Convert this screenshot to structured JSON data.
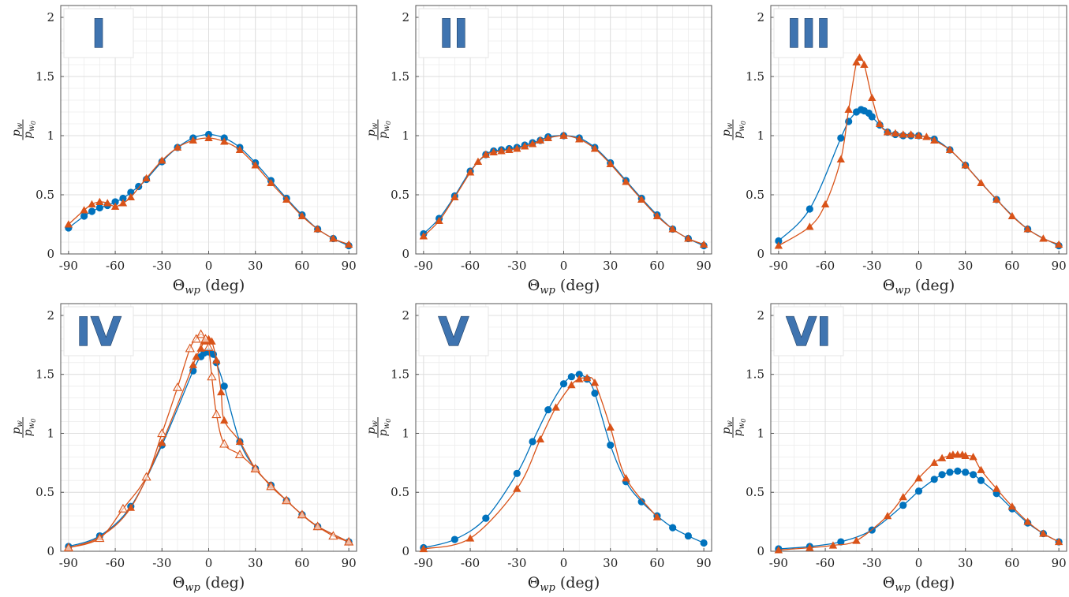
{
  "colors": {
    "blue": "#0072BD",
    "orange": "#D95319",
    "grid_minor": "#ececec",
    "grid_major": "#dcdcdc",
    "axis": "#555555"
  },
  "chart_data": [
    {
      "type": "line",
      "label": "I",
      "xlabel": "Θ_wp (deg)",
      "ylabel": "p_w / p_w0",
      "xlim": [
        -95,
        95
      ],
      "ylim": [
        0,
        2.1
      ],
      "xticks": [
        -90,
        -60,
        -30,
        0,
        30,
        60,
        90
      ],
      "yticks": [
        0,
        0.5,
        1,
        1.5,
        2
      ],
      "series": [
        {
          "color": "blue",
          "marker": "circle",
          "x": [
            -90,
            -80,
            -75,
            -70,
            -65,
            -60,
            -55,
            -50,
            -45,
            -40,
            -30,
            -20,
            -10,
            0,
            10,
            20,
            30,
            40,
            50,
            60,
            70,
            80,
            90
          ],
          "y": [
            0.22,
            0.32,
            0.36,
            0.39,
            0.41,
            0.44,
            0.47,
            0.52,
            0.57,
            0.63,
            0.78,
            0.9,
            0.98,
            1.01,
            0.98,
            0.9,
            0.77,
            0.62,
            0.47,
            0.33,
            0.21,
            0.13,
            0.07
          ]
        },
        {
          "color": "orange",
          "marker": "triangle",
          "x": [
            -90,
            -80,
            -75,
            -70,
            -65,
            -60,
            -55,
            -50,
            -40,
            -30,
            -20,
            -10,
            0,
            10,
            20,
            30,
            40,
            50,
            60,
            70,
            80,
            90
          ],
          "y": [
            0.25,
            0.37,
            0.42,
            0.44,
            0.43,
            0.4,
            0.43,
            0.48,
            0.64,
            0.79,
            0.9,
            0.96,
            0.98,
            0.95,
            0.88,
            0.75,
            0.6,
            0.46,
            0.32,
            0.21,
            0.13,
            0.08
          ]
        }
      ]
    },
    {
      "type": "line",
      "label": "II",
      "xlabel": "Θ_wp (deg)",
      "ylabel": "p_w / p_w0",
      "xlim": [
        -95,
        95
      ],
      "ylim": [
        0,
        2.1
      ],
      "xticks": [
        -90,
        -60,
        -30,
        0,
        30,
        60,
        90
      ],
      "yticks": [
        0,
        0.5,
        1,
        1.5,
        2
      ],
      "series": [
        {
          "color": "blue",
          "marker": "circle",
          "x": [
            -90,
            -80,
            -70,
            -60,
            -50,
            -45,
            -40,
            -35,
            -30,
            -25,
            -20,
            -15,
            -10,
            0,
            10,
            20,
            30,
            40,
            50,
            60,
            70,
            80,
            90
          ],
          "y": [
            0.17,
            0.3,
            0.49,
            0.7,
            0.84,
            0.87,
            0.88,
            0.89,
            0.9,
            0.92,
            0.94,
            0.96,
            0.99,
            1.0,
            0.98,
            0.9,
            0.77,
            0.62,
            0.47,
            0.33,
            0.21,
            0.13,
            0.07
          ]
        },
        {
          "color": "orange",
          "marker": "triangle",
          "x": [
            -90,
            -80,
            -70,
            -60,
            -55,
            -50,
            -45,
            -40,
            -35,
            -30,
            -25,
            -20,
            -15,
            -10,
            0,
            10,
            20,
            30,
            40,
            50,
            60,
            70,
            80,
            90
          ],
          "y": [
            0.15,
            0.28,
            0.48,
            0.69,
            0.78,
            0.84,
            0.86,
            0.87,
            0.88,
            0.89,
            0.91,
            0.93,
            0.96,
            0.98,
            1.0,
            0.97,
            0.89,
            0.76,
            0.61,
            0.46,
            0.32,
            0.21,
            0.13,
            0.08
          ]
        }
      ]
    },
    {
      "type": "line",
      "label": "III",
      "xlabel": "Θ_wp (deg)",
      "ylabel": "p_w / p_w0",
      "xlim": [
        -95,
        95
      ],
      "ylim": [
        0,
        2.1
      ],
      "xticks": [
        -90,
        -60,
        -30,
        0,
        30,
        60,
        90
      ],
      "yticks": [
        0,
        0.5,
        1,
        1.5,
        2
      ],
      "series": [
        {
          "color": "blue",
          "marker": "circle",
          "x": [
            -90,
            -70,
            -50,
            -45,
            -40,
            -37,
            -35,
            -32,
            -30,
            -25,
            -20,
            -15,
            -10,
            -5,
            0,
            10,
            20,
            30,
            50,
            70,
            90
          ],
          "y": [
            0.11,
            0.38,
            0.98,
            1.12,
            1.2,
            1.22,
            1.21,
            1.19,
            1.16,
            1.09,
            1.03,
            1.01,
            1.0,
            1.0,
            1.0,
            0.97,
            0.88,
            0.75,
            0.46,
            0.21,
            0.07
          ]
        },
        {
          "color": "orange",
          "marker": "triangle",
          "x": [
            -90,
            -70,
            -60,
            -50,
            -45,
            -40,
            -38,
            -35,
            -30,
            -25,
            -20,
            -15,
            -10,
            -5,
            0,
            5,
            10,
            20,
            30,
            40,
            50,
            60,
            70,
            80,
            90
          ],
          "y": [
            0.07,
            0.23,
            0.42,
            0.8,
            1.22,
            1.62,
            1.66,
            1.6,
            1.32,
            1.1,
            1.03,
            1.02,
            1.01,
            1.01,
            1.0,
            0.99,
            0.96,
            0.88,
            0.75,
            0.6,
            0.46,
            0.32,
            0.21,
            0.13,
            0.08
          ]
        }
      ]
    },
    {
      "type": "line",
      "label": "IV",
      "xlabel": "Θ_wp (deg)",
      "ylabel": "p_w / p_w0",
      "xlim": [
        -95,
        95
      ],
      "ylim": [
        0,
        2.1
      ],
      "xticks": [
        -90,
        -60,
        -30,
        0,
        30,
        60,
        90
      ],
      "yticks": [
        0,
        0.5,
        1,
        1.5,
        2
      ],
      "series": [
        {
          "color": "blue",
          "marker": "circle",
          "x": [
            -90,
            -70,
            -50,
            -30,
            -10,
            -5,
            -3,
            0,
            3,
            5,
            10,
            20,
            30,
            40,
            50,
            60,
            70,
            90
          ],
          "y": [
            0.04,
            0.13,
            0.38,
            0.9,
            1.53,
            1.65,
            1.68,
            1.69,
            1.67,
            1.6,
            1.4,
            0.93,
            0.7,
            0.56,
            0.43,
            0.31,
            0.21,
            0.08
          ]
        },
        {
          "color": "orange",
          "marker": "triangle",
          "x": [
            -90,
            -70,
            -50,
            -30,
            -10,
            -8,
            -5,
            -3,
            0,
            2,
            5,
            8,
            10,
            20,
            30,
            40,
            50,
            60,
            70,
            90
          ],
          "y": [
            0.03,
            0.12,
            0.37,
            0.92,
            1.58,
            1.65,
            1.72,
            1.78,
            1.8,
            1.78,
            1.62,
            1.35,
            1.11,
            0.93,
            0.7,
            0.56,
            0.43,
            0.31,
            0.21,
            0.08
          ]
        },
        {
          "color": "orange",
          "marker": "triangle-open",
          "x": [
            -90,
            -70,
            -55,
            -40,
            -30,
            -20,
            -12,
            -8,
            -5,
            -2,
            0,
            2,
            5,
            10,
            20,
            30,
            40,
            50,
            60,
            70,
            80,
            90
          ],
          "y": [
            0.03,
            0.11,
            0.36,
            0.63,
            1.0,
            1.39,
            1.72,
            1.8,
            1.84,
            1.8,
            1.73,
            1.48,
            1.16,
            0.91,
            0.82,
            0.7,
            0.55,
            0.43,
            0.31,
            0.21,
            0.13,
            0.08
          ]
        }
      ]
    },
    {
      "type": "line",
      "label": "V",
      "xlabel": "Θ_wp (deg)",
      "ylabel": "p_w / p_w0",
      "xlim": [
        -95,
        95
      ],
      "ylim": [
        0,
        2.1
      ],
      "xticks": [
        -90,
        -60,
        -30,
        0,
        30,
        60,
        90
      ],
      "yticks": [
        0,
        0.5,
        1,
        1.5,
        2
      ],
      "series": [
        {
          "color": "blue",
          "marker": "circle",
          "x": [
            -90,
            -70,
            -50,
            -30,
            -20,
            -10,
            0,
            5,
            10,
            15,
            20,
            30,
            40,
            50,
            60,
            70,
            80,
            90
          ],
          "y": [
            0.03,
            0.1,
            0.28,
            0.66,
            0.93,
            1.2,
            1.42,
            1.48,
            1.5,
            1.46,
            1.34,
            0.9,
            0.59,
            0.42,
            0.3,
            0.2,
            0.13,
            0.07
          ]
        },
        {
          "color": "orange",
          "marker": "triangle",
          "x": [
            -90,
            -60,
            -30,
            -15,
            -5,
            5,
            10,
            15,
            20,
            30,
            40,
            60
          ],
          "y": [
            0.02,
            0.11,
            0.53,
            0.95,
            1.22,
            1.41,
            1.46,
            1.47,
            1.43,
            1.05,
            0.62,
            0.29
          ]
        }
      ]
    },
    {
      "type": "line",
      "label": "VI",
      "xlabel": "Θ_wp (deg)",
      "ylabel": "p_w / p_w0",
      "xlim": [
        -95,
        95
      ],
      "ylim": [
        0,
        2.1
      ],
      "xticks": [
        -90,
        -60,
        -30,
        0,
        30,
        60,
        90
      ],
      "yticks": [
        0,
        0.5,
        1,
        1.5,
        2
      ],
      "series": [
        {
          "color": "blue",
          "marker": "circle",
          "x": [
            -90,
            -70,
            -50,
            -30,
            -10,
            0,
            10,
            15,
            20,
            25,
            30,
            35,
            40,
            50,
            60,
            70,
            80,
            90
          ],
          "y": [
            0.02,
            0.04,
            0.08,
            0.18,
            0.39,
            0.51,
            0.61,
            0.65,
            0.67,
            0.68,
            0.67,
            0.65,
            0.6,
            0.49,
            0.36,
            0.24,
            0.15,
            0.08
          ]
        },
        {
          "color": "orange",
          "marker": "triangle",
          "x": [
            -90,
            -70,
            -55,
            -40,
            -20,
            -10,
            0,
            10,
            15,
            20,
            22,
            25,
            28,
            30,
            35,
            40,
            50,
            60,
            70,
            80,
            90
          ],
          "y": [
            0.01,
            0.03,
            0.05,
            0.09,
            0.3,
            0.46,
            0.62,
            0.75,
            0.79,
            0.81,
            0.82,
            0.82,
            0.82,
            0.81,
            0.8,
            0.69,
            0.53,
            0.38,
            0.25,
            0.15,
            0.08
          ]
        }
      ]
    }
  ]
}
